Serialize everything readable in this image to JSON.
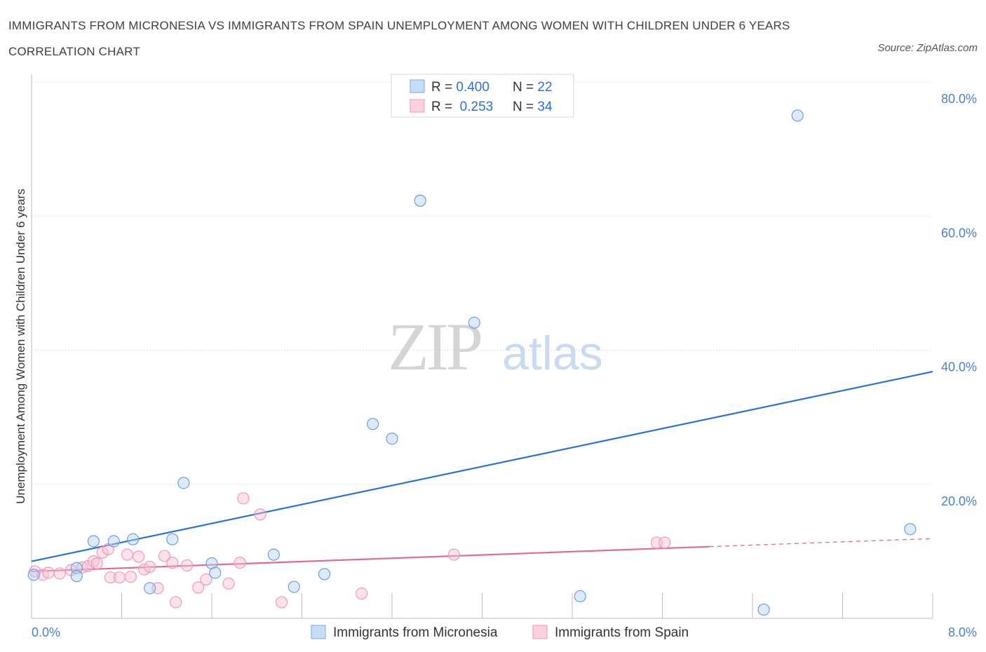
{
  "title": "IMMIGRANTS FROM MICRONESIA VS IMMIGRANTS FROM SPAIN UNEMPLOYMENT AMONG WOMEN WITH CHILDREN UNDER 6 YEARS CORRELATION CHART",
  "source": "Source: ZipAtlas.com",
  "watermark": {
    "zip": "ZIP",
    "atlas": "atlas"
  },
  "legend_box": {
    "rows": [
      {
        "r_label": "R = ",
        "r_value": "0.400",
        "n_label": "N = ",
        "n_value": "22"
      },
      {
        "r_label": "R = ",
        "r_value": " 0.253",
        "n_label": "N = ",
        "n_value": "34"
      }
    ]
  },
  "bottom_legend": [
    "Immigrants from Micronesia",
    "Immigrants from Spain"
  ],
  "chart_data": {
    "type": "scatter",
    "ylabel": "Unemployment Among Women with Children Under 6 years",
    "xlim": [
      0,
      8
    ],
    "ylim": [
      0,
      80
    ],
    "x_tick_labels": [
      "0.0%",
      "8.0%"
    ],
    "y_ticks": [
      20,
      40,
      60,
      80
    ],
    "y_tick_labels": [
      "20.0%",
      "40.0%",
      "60.0%",
      "80.0%"
    ],
    "grid": true,
    "colors": {
      "micronesia": "#5b9be6",
      "micronesia_line": "#2a72d4",
      "spain": "#f08cae",
      "spain_line": "#e06a95",
      "tick_text": "#4a7fcf"
    },
    "series": [
      {
        "name": "Immigrants from Micronesia",
        "points": [
          [
            0.02,
            6.5
          ],
          [
            0.4,
            7.5
          ],
          [
            0.4,
            6.3
          ],
          [
            0.55,
            11.5
          ],
          [
            0.73,
            11.5
          ],
          [
            0.9,
            11.8
          ],
          [
            1.05,
            4.5
          ],
          [
            1.25,
            11.8
          ],
          [
            1.35,
            20.2
          ],
          [
            1.6,
            8.2
          ],
          [
            1.63,
            6.8
          ],
          [
            2.15,
            9.5
          ],
          [
            2.33,
            4.7
          ],
          [
            2.6,
            6.6
          ],
          [
            3.03,
            29.0
          ],
          [
            3.2,
            26.8
          ],
          [
            3.45,
            62.3
          ],
          [
            3.93,
            44.1
          ],
          [
            4.87,
            3.3
          ],
          [
            6.5,
            1.3
          ],
          [
            6.8,
            75.0
          ],
          [
            7.8,
            13.3
          ]
        ],
        "trend": {
          "x": [
            0,
            8
          ],
          "y": [
            8.5,
            36.8
          ]
        }
      },
      {
        "name": "Immigrants from Spain",
        "points": [
          [
            0.03,
            7.0
          ],
          [
            0.1,
            6.5
          ],
          [
            0.15,
            6.8
          ],
          [
            0.25,
            6.7
          ],
          [
            0.35,
            7.2
          ],
          [
            0.45,
            7.6
          ],
          [
            0.5,
            7.8
          ],
          [
            0.55,
            8.5
          ],
          [
            0.58,
            8.2
          ],
          [
            0.63,
            9.8
          ],
          [
            0.68,
            10.3
          ],
          [
            0.7,
            6.1
          ],
          [
            0.78,
            6.1
          ],
          [
            0.85,
            9.5
          ],
          [
            0.88,
            6.2
          ],
          [
            0.95,
            9.2
          ],
          [
            1.0,
            7.3
          ],
          [
            1.05,
            7.7
          ],
          [
            1.12,
            4.5
          ],
          [
            1.18,
            9.3
          ],
          [
            1.25,
            8.3
          ],
          [
            1.28,
            2.4
          ],
          [
            1.38,
            7.9
          ],
          [
            1.48,
            4.6
          ],
          [
            1.55,
            5.8
          ],
          [
            1.75,
            5.2
          ],
          [
            1.85,
            8.3
          ],
          [
            1.88,
            17.9
          ],
          [
            2.03,
            15.5
          ],
          [
            2.22,
            2.4
          ],
          [
            2.93,
            3.7
          ],
          [
            3.75,
            9.5
          ],
          [
            5.55,
            11.3
          ],
          [
            5.62,
            11.3
          ]
        ],
        "trend": {
          "x": [
            0,
            6.02
          ],
          "y": [
            7.0,
            10.7
          ]
        },
        "trend_dashed": {
          "x": [
            6.02,
            8
          ],
          "y": [
            10.7,
            11.9
          ]
        }
      }
    ]
  }
}
